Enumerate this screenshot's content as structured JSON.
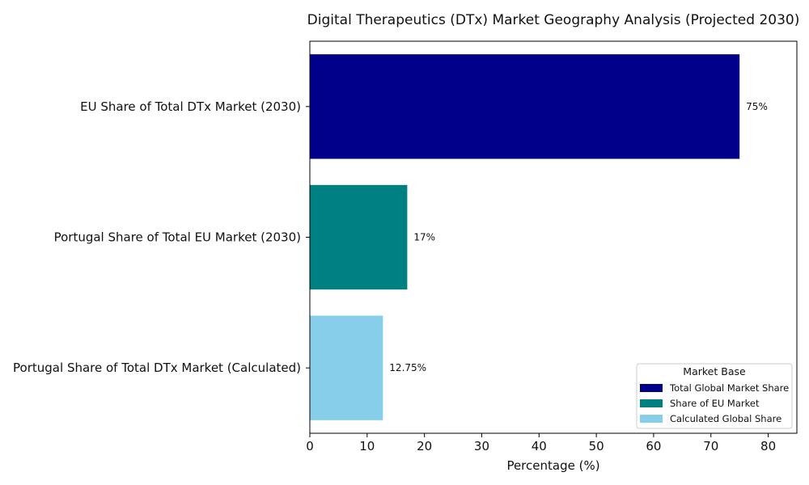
{
  "chart_data": {
    "type": "bar",
    "orientation": "horizontal",
    "title": "Digital Therapeutics (DTx) Market Geography Analysis (Projected 2030)",
    "xlabel": "Percentage (%)",
    "ylabel": "",
    "xlim": [
      0,
      85
    ],
    "xticks": [
      0,
      10,
      20,
      30,
      40,
      50,
      60,
      70,
      80
    ],
    "grid": false,
    "categories": [
      "EU Share of Total DTx Market (2030)",
      "Portugal Share of Total EU Market (2030)",
      "Portugal Share of Total DTx Market (Calculated)"
    ],
    "values": [
      75,
      17,
      12.75
    ],
    "data_labels": [
      "75%",
      "17%",
      "12.75%"
    ],
    "colors": [
      "#00008b",
      "#008080",
      "#87ceeb"
    ],
    "legend": {
      "title": "Market Base",
      "placement": "lower-right",
      "entries": [
        {
          "label": "Total Global Market Share",
          "color": "#00008b"
        },
        {
          "label": "Share of EU Market",
          "color": "#008080"
        },
        {
          "label": "Calculated Global Share",
          "color": "#87ceeb"
        }
      ]
    }
  }
}
